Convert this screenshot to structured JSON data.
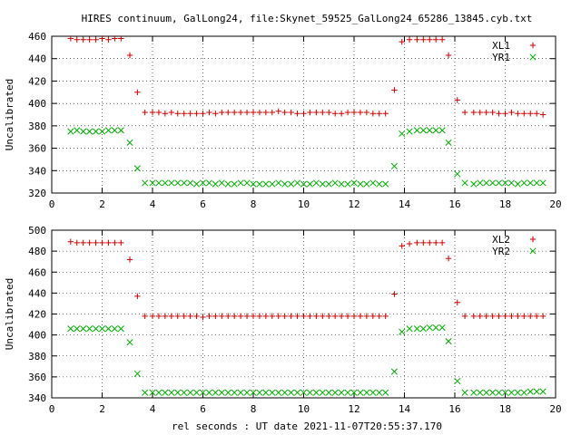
{
  "title": "HIRES continuum, GalLong24, file:Skynet_59525_GalLong24_65286_13845.cyb.txt",
  "xlabel": "rel seconds : UT date 2021-11-07T20:55:37.170",
  "colors": {
    "series_a": "#cc0000",
    "series_b": "#00aa00",
    "axis": "#000000",
    "grid": "#000000"
  },
  "chart_data": [
    {
      "type": "scatter",
      "ylabel": "Uncalibrated",
      "xlim": [
        0,
        20
      ],
      "ylim": [
        320,
        460
      ],
      "xticks": [
        "0",
        "2",
        "4",
        "6",
        "8",
        "10",
        "12",
        "14",
        "16",
        "18",
        "20"
      ],
      "yticks": [
        "320",
        "340",
        "360",
        "380",
        "400",
        "420",
        "440",
        "460"
      ],
      "grid": true,
      "legend": "top-right",
      "x": [
        0.75,
        1.0,
        1.25,
        1.5,
        1.75,
        2.0,
        2.25,
        2.5,
        2.75,
        3.1,
        3.4,
        3.7,
        4.0,
        4.25,
        4.5,
        4.75,
        5.0,
        5.25,
        5.5,
        5.75,
        6.0,
        6.25,
        6.5,
        6.75,
        7.0,
        7.25,
        7.5,
        7.75,
        8.0,
        8.25,
        8.5,
        8.75,
        9.0,
        9.25,
        9.5,
        9.75,
        10.0,
        10.25,
        10.5,
        10.75,
        11.0,
        11.25,
        11.5,
        11.75,
        12.0,
        12.25,
        12.5,
        12.75,
        13.0,
        13.25,
        13.6,
        13.9,
        14.2,
        14.5,
        14.75,
        15.0,
        15.25,
        15.5,
        15.75,
        16.1,
        16.4,
        16.75,
        17.0,
        17.25,
        17.5,
        17.75,
        18.0,
        18.25,
        18.5,
        18.75,
        19.0,
        19.25,
        19.5
      ],
      "series": [
        {
          "name": "XL1",
          "marker": "plus",
          "values": [
            458,
            457,
            457,
            457,
            457,
            458,
            457,
            458,
            458,
            443,
            410,
            392,
            392,
            392,
            391,
            392,
            391,
            391,
            391,
            391,
            391,
            392,
            391,
            392,
            392,
            392,
            392,
            392,
            392,
            392,
            392,
            392,
            393,
            392,
            392,
            391,
            391,
            392,
            392,
            392,
            392,
            391,
            391,
            392,
            392,
            392,
            392,
            391,
            391,
            391,
            412,
            455,
            457,
            457,
            457,
            457,
            457,
            457,
            443,
            403,
            392,
            392,
            392,
            392,
            392,
            391,
            391,
            392,
            391,
            391,
            391,
            391,
            390
          ]
        },
        {
          "name": "YR1",
          "marker": "cross",
          "values": [
            375,
            376,
            375,
            375,
            375,
            375,
            376,
            376,
            376,
            365,
            342,
            329,
            329,
            329,
            329,
            329,
            329,
            329,
            329,
            328,
            329,
            329,
            328,
            329,
            328,
            328,
            329,
            329,
            328,
            328,
            328,
            328,
            329,
            328,
            328,
            329,
            328,
            328,
            329,
            328,
            328,
            329,
            328,
            328,
            329,
            328,
            328,
            329,
            328,
            328,
            344,
            373,
            375,
            376,
            376,
            376,
            376,
            376,
            365,
            337,
            329,
            328,
            329,
            329,
            329,
            329,
            329,
            329,
            328,
            329,
            329,
            329,
            329
          ]
        }
      ]
    },
    {
      "type": "scatter",
      "ylabel": "Uncalibrated",
      "xlim": [
        0,
        20
      ],
      "ylim": [
        340,
        500
      ],
      "xticks": [
        "0",
        "2",
        "4",
        "6",
        "8",
        "10",
        "12",
        "14",
        "16",
        "18",
        "20"
      ],
      "yticks": [
        "340",
        "360",
        "380",
        "400",
        "420",
        "440",
        "460",
        "480",
        "500"
      ],
      "grid": true,
      "legend": "top-right",
      "x": [
        0.75,
        1.0,
        1.25,
        1.5,
        1.75,
        2.0,
        2.25,
        2.5,
        2.75,
        3.1,
        3.4,
        3.7,
        4.0,
        4.25,
        4.5,
        4.75,
        5.0,
        5.25,
        5.5,
        5.75,
        6.0,
        6.25,
        6.5,
        6.75,
        7.0,
        7.25,
        7.5,
        7.75,
        8.0,
        8.25,
        8.5,
        8.75,
        9.0,
        9.25,
        9.5,
        9.75,
        10.0,
        10.25,
        10.5,
        10.75,
        11.0,
        11.25,
        11.5,
        11.75,
        12.0,
        12.25,
        12.5,
        12.75,
        13.0,
        13.25,
        13.6,
        13.9,
        14.2,
        14.5,
        14.75,
        15.0,
        15.25,
        15.5,
        15.75,
        16.1,
        16.4,
        16.75,
        17.0,
        17.25,
        17.5,
        17.75,
        18.0,
        18.25,
        18.5,
        18.75,
        19.0,
        19.25,
        19.5
      ],
      "series": [
        {
          "name": "XL2",
          "marker": "plus",
          "values": [
            489,
            488,
            488,
            488,
            488,
            488,
            488,
            488,
            488,
            472,
            437,
            418,
            418,
            418,
            418,
            418,
            418,
            418,
            418,
            418,
            417,
            418,
            418,
            418,
            418,
            418,
            418,
            418,
            418,
            418,
            418,
            418,
            418,
            418,
            418,
            418,
            418,
            418,
            418,
            418,
            418,
            418,
            418,
            418,
            418,
            418,
            418,
            418,
            418,
            418,
            439,
            485,
            487,
            488,
            488,
            488,
            488,
            488,
            473,
            431,
            418,
            418,
            418,
            418,
            418,
            418,
            418,
            418,
            418,
            418,
            418,
            418,
            418
          ]
        },
        {
          "name": "YR2",
          "marker": "cross",
          "values": [
            406,
            406,
            406,
            406,
            406,
            406,
            406,
            406,
            406,
            393,
            363,
            345,
            345,
            345,
            345,
            345,
            345,
            345,
            345,
            345,
            345,
            345,
            345,
            345,
            345,
            345,
            345,
            345,
            345,
            345,
            345,
            345,
            345,
            345,
            345,
            345,
            345,
            345,
            345,
            345,
            345,
            345,
            345,
            345,
            345,
            345,
            345,
            345,
            345,
            345,
            365,
            403,
            406,
            406,
            406,
            407,
            407,
            407,
            394,
            356,
            345,
            345,
            345,
            345,
            345,
            345,
            345,
            345,
            345,
            345,
            346,
            346,
            346
          ]
        }
      ]
    }
  ]
}
